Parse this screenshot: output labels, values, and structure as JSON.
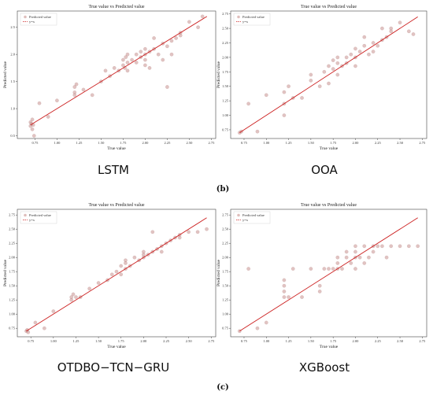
{
  "panel_labels": [
    "(b)",
    "(c)"
  ],
  "colors": {
    "point": "#c9928f",
    "ideal_line": "#cc1f1f",
    "frame": "#444444"
  },
  "chart_data": [
    {
      "type": "scatter",
      "model_name": "LSTM",
      "title": "True value vs Predicted value",
      "xlabel": "True value",
      "ylabel": "Predicted value",
      "legend": [
        "Predicted value",
        "y=x"
      ],
      "legend_position": "top-left",
      "xlim": [
        0.55,
        2.8
      ],
      "ylim": [
        0.45,
        2.8
      ],
      "xticks": [
        0.75,
        1.0,
        1.25,
        1.5,
        1.75,
        2.0,
        2.25,
        2.5,
        2.75
      ],
      "xtick_labels": [
        "0.75",
        "1.00",
        "1.25",
        "1.50",
        "1.75",
        "2.00",
        "2.25",
        "2.50",
        "2.75"
      ],
      "yticks": [
        0.5,
        1.0,
        1.5,
        2.0,
        2.5
      ],
      "ytick_labels": [
        "0.5",
        "1.0",
        "1.5",
        "2.0",
        "2.5"
      ],
      "ideal_line": [
        0.7,
        2.7
      ],
      "points": [
        [
          0.7,
          0.75
        ],
        [
          0.7,
          0.68
        ],
        [
          0.71,
          0.72
        ],
        [
          0.72,
          0.62
        ],
        [
          0.72,
          0.8
        ],
        [
          0.73,
          0.7
        ],
        [
          0.74,
          0.5
        ],
        [
          0.8,
          1.1
        ],
        [
          0.9,
          0.85
        ],
        [
          1.0,
          1.15
        ],
        [
          1.2,
          1.3
        ],
        [
          1.2,
          1.4
        ],
        [
          1.2,
          1.25
        ],
        [
          1.22,
          1.45
        ],
        [
          1.3,
          1.35
        ],
        [
          1.4,
          1.25
        ],
        [
          1.5,
          1.5
        ],
        [
          1.55,
          1.7
        ],
        [
          1.6,
          1.6
        ],
        [
          1.65,
          1.75
        ],
        [
          1.7,
          1.7
        ],
        [
          1.75,
          1.8
        ],
        [
          1.75,
          1.9
        ],
        [
          1.77,
          1.75
        ],
        [
          1.78,
          1.95
        ],
        [
          1.8,
          1.85
        ],
        [
          1.8,
          2.0
        ],
        [
          1.8,
          1.7
        ],
        [
          1.85,
          1.9
        ],
        [
          1.9,
          2.0
        ],
        [
          1.9,
          1.85
        ],
        [
          1.95,
          1.95
        ],
        [
          1.95,
          2.05
        ],
        [
          2.0,
          2.0
        ],
        [
          2.0,
          2.1
        ],
        [
          2.0,
          1.9
        ],
        [
          2.0,
          1.8
        ],
        [
          2.05,
          2.05
        ],
        [
          2.05,
          1.75
        ],
        [
          2.1,
          2.1
        ],
        [
          2.1,
          2.3
        ],
        [
          2.15,
          2.0
        ],
        [
          2.2,
          2.2
        ],
        [
          2.2,
          1.9
        ],
        [
          2.25,
          2.15
        ],
        [
          2.25,
          1.4
        ],
        [
          2.3,
          2.0
        ],
        [
          2.3,
          2.25
        ],
        [
          2.35,
          2.3
        ],
        [
          2.4,
          2.4
        ],
        [
          2.4,
          2.35
        ],
        [
          2.5,
          2.6
        ],
        [
          2.6,
          2.5
        ],
        [
          2.65,
          2.7
        ]
      ]
    },
    {
      "type": "scatter",
      "model_name": "OOA",
      "title": "True value vs Predicted value",
      "xlabel": "True value",
      "ylabel": "Predicted value",
      "legend": [
        "Predicted value",
        "y=x"
      ],
      "legend_position": "top-left",
      "xlim": [
        0.6,
        2.8
      ],
      "ylim": [
        0.6,
        2.8
      ],
      "xticks": [
        0.75,
        1.0,
        1.25,
        1.5,
        1.75,
        2.0,
        2.25,
        2.5,
        2.75
      ],
      "xtick_labels": [
        "0.75",
        "1.00",
        "1.25",
        "1.50",
        "1.75",
        "2.00",
        "2.25",
        "2.50",
        "2.75"
      ],
      "yticks": [
        0.75,
        1.0,
        1.25,
        1.5,
        1.75,
        2.0,
        2.25,
        2.5,
        2.75
      ],
      "ytick_labels": [
        "0.75",
        "1.00",
        "1.25",
        "1.50",
        "1.75",
        "2.00",
        "2.25",
        "2.50",
        "2.75"
      ],
      "ideal_line": [
        0.7,
        2.7
      ],
      "points": [
        [
          0.7,
          0.7
        ],
        [
          0.72,
          0.72
        ],
        [
          0.8,
          1.2
        ],
        [
          0.9,
          0.72
        ],
        [
          1.0,
          1.35
        ],
        [
          1.2,
          1.0
        ],
        [
          1.2,
          1.2
        ],
        [
          1.2,
          1.4
        ],
        [
          1.25,
          1.5
        ],
        [
          1.3,
          1.3
        ],
        [
          1.4,
          1.3
        ],
        [
          1.5,
          1.6
        ],
        [
          1.5,
          1.7
        ],
        [
          1.6,
          1.5
        ],
        [
          1.65,
          1.75
        ],
        [
          1.7,
          1.85
        ],
        [
          1.7,
          1.55
        ],
        [
          1.75,
          1.8
        ],
        [
          1.75,
          1.95
        ],
        [
          1.8,
          1.7
        ],
        [
          1.8,
          1.9
        ],
        [
          1.8,
          2.0
        ],
        [
          1.85,
          1.85
        ],
        [
          1.9,
          2.0
        ],
        [
          1.9,
          1.9
        ],
        [
          1.95,
          2.05
        ],
        [
          2.0,
          2.0
        ],
        [
          2.0,
          2.15
        ],
        [
          2.0,
          1.85
        ],
        [
          2.05,
          2.1
        ],
        [
          2.1,
          2.2
        ],
        [
          2.1,
          2.35
        ],
        [
          2.15,
          2.05
        ],
        [
          2.2,
          2.25
        ],
        [
          2.2,
          2.1
        ],
        [
          2.25,
          2.2
        ],
        [
          2.3,
          2.3
        ],
        [
          2.3,
          2.5
        ],
        [
          2.35,
          2.35
        ],
        [
          2.4,
          2.45
        ],
        [
          2.4,
          2.5
        ],
        [
          2.5,
          2.6
        ],
        [
          2.6,
          2.45
        ],
        [
          2.65,
          2.4
        ]
      ]
    },
    {
      "type": "scatter",
      "model_name": "OTDBO−TCN−GRU",
      "title": "True value vs Predicted value",
      "xlabel": "True value",
      "ylabel": "Predicted value",
      "legend": [
        "Predicted value",
        "y=x"
      ],
      "legend_position": "top-left",
      "xlim": [
        0.6,
        2.8
      ],
      "ylim": [
        0.6,
        2.85
      ],
      "xticks": [
        0.75,
        1.0,
        1.25,
        1.5,
        1.75,
        2.0,
        2.25,
        2.5,
        2.75
      ],
      "xtick_labels": [
        "0.75",
        "1.00",
        "1.25",
        "1.50",
        "1.75",
        "2.00",
        "2.25",
        "2.50",
        "2.75"
      ],
      "yticks": [
        0.75,
        1.0,
        1.25,
        1.5,
        1.75,
        2.0,
        2.25,
        2.5,
        2.75
      ],
      "ytick_labels": [
        "0.75",
        "1.00",
        "1.25",
        "1.50",
        "1.75",
        "2.00",
        "2.25",
        "2.50",
        "2.75"
      ],
      "ideal_line": [
        0.7,
        2.7
      ],
      "points": [
        [
          0.7,
          0.7
        ],
        [
          0.71,
          0.72
        ],
        [
          0.72,
          0.68
        ],
        [
          0.8,
          0.85
        ],
        [
          0.9,
          0.75
        ],
        [
          1.0,
          1.05
        ],
        [
          1.2,
          1.3
        ],
        [
          1.2,
          1.25
        ],
        [
          1.22,
          1.35
        ],
        [
          1.25,
          1.3
        ],
        [
          1.3,
          1.3
        ],
        [
          1.4,
          1.45
        ],
        [
          1.5,
          1.55
        ],
        [
          1.6,
          1.6
        ],
        [
          1.65,
          1.7
        ],
        [
          1.7,
          1.75
        ],
        [
          1.75,
          1.85
        ],
        [
          1.75,
          1.7
        ],
        [
          1.8,
          1.8
        ],
        [
          1.8,
          1.9
        ],
        [
          1.8,
          1.95
        ],
        [
          1.85,
          1.85
        ],
        [
          1.9,
          2.0
        ],
        [
          1.95,
          1.95
        ],
        [
          2.0,
          2.0
        ],
        [
          2.0,
          2.05
        ],
        [
          2.0,
          2.1
        ],
        [
          2.05,
          2.05
        ],
        [
          2.1,
          2.1
        ],
        [
          2.1,
          2.45
        ],
        [
          2.15,
          2.15
        ],
        [
          2.2,
          2.2
        ],
        [
          2.2,
          2.1
        ],
        [
          2.25,
          2.25
        ],
        [
          2.3,
          2.3
        ],
        [
          2.35,
          2.35
        ],
        [
          2.4,
          2.4
        ],
        [
          2.4,
          2.35
        ],
        [
          2.5,
          2.45
        ],
        [
          2.6,
          2.45
        ],
        [
          2.7,
          2.5
        ]
      ]
    },
    {
      "type": "scatter",
      "model_name": "XGBoost",
      "title": "True value vs Predicted value",
      "xlabel": "True value",
      "ylabel": "Predicted value",
      "legend": [
        "Predicted value",
        "y=x"
      ],
      "legend_position": "top-left",
      "xlim": [
        0.6,
        2.8
      ],
      "ylim": [
        0.6,
        2.85
      ],
      "xticks": [
        0.75,
        1.0,
        1.25,
        1.5,
        1.75,
        2.0,
        2.25,
        2.5,
        2.75
      ],
      "xtick_labels": [
        "0.75",
        "1.00",
        "1.25",
        "1.50",
        "1.75",
        "2.00",
        "2.25",
        "2.50",
        "2.75"
      ],
      "yticks": [
        0.75,
        1.0,
        1.25,
        1.5,
        1.75,
        2.0,
        2.25,
        2.5,
        2.75
      ],
      "ytick_labels": [
        "0.75",
        "1.00",
        "1.25",
        "1.50",
        "1.75",
        "2.00",
        "2.25",
        "2.50",
        "2.75"
      ],
      "ideal_line": [
        0.7,
        2.7
      ],
      "points": [
        [
          0.7,
          0.7
        ],
        [
          0.8,
          1.8
        ],
        [
          0.9,
          0.75
        ],
        [
          1.0,
          0.85
        ],
        [
          1.2,
          1.3
        ],
        [
          1.2,
          1.4
        ],
        [
          1.2,
          1.5
        ],
        [
          1.2,
          1.6
        ],
        [
          1.25,
          1.3
        ],
        [
          1.3,
          1.8
        ],
        [
          1.4,
          1.3
        ],
        [
          1.5,
          1.8
        ],
        [
          1.6,
          1.5
        ],
        [
          1.6,
          1.4
        ],
        [
          1.65,
          1.8
        ],
        [
          1.7,
          1.8
        ],
        [
          1.75,
          1.8
        ],
        [
          1.8,
          1.8
        ],
        [
          1.8,
          1.9
        ],
        [
          1.8,
          2.0
        ],
        [
          1.85,
          1.8
        ],
        [
          1.9,
          2.0
        ],
        [
          1.9,
          2.1
        ],
        [
          1.95,
          1.9
        ],
        [
          2.0,
          2.0
        ],
        [
          2.0,
          2.1
        ],
        [
          2.0,
          2.2
        ],
        [
          2.0,
          1.8
        ],
        [
          2.05,
          2.0
        ],
        [
          2.1,
          2.2
        ],
        [
          2.1,
          1.9
        ],
        [
          2.15,
          2.0
        ],
        [
          2.2,
          2.2
        ],
        [
          2.2,
          2.1
        ],
        [
          2.25,
          2.2
        ],
        [
          2.3,
          2.2
        ],
        [
          2.35,
          2.0
        ],
        [
          2.4,
          2.2
        ],
        [
          2.5,
          2.2
        ],
        [
          2.6,
          2.2
        ],
        [
          2.7,
          2.2
        ]
      ]
    }
  ]
}
